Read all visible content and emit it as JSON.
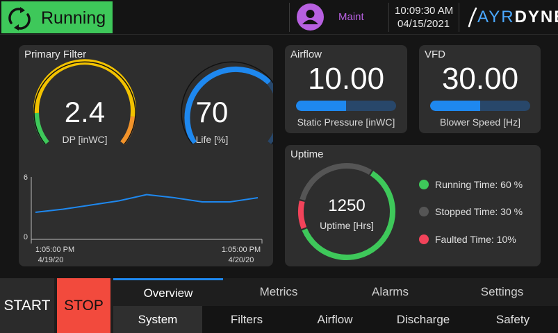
{
  "header": {
    "status": "Running",
    "status_color": "#3ec85a",
    "user": "Maint",
    "time": "10:09:30 AM",
    "date": "04/15/2021",
    "logo_part1": "AYR",
    "logo_part2": "DYNE"
  },
  "primary_filter": {
    "title": "Primary Filter",
    "dp": {
      "value": "2.4",
      "label": "DP [inWC]"
    },
    "life": {
      "value": "70",
      "label": "Life [%]"
    },
    "trend": {
      "ymin_label": "0",
      "ymax_label": "6",
      "ylim": [
        0,
        6
      ],
      "start_time": "1:05:00 PM",
      "start_date": "4/19/20",
      "end_time": "1:05:00 PM",
      "end_date": "4/20/20",
      "values": [
        2.6,
        2.9,
        3.3,
        3.7,
        4.3,
        4.0,
        3.6,
        3.6,
        4.0
      ]
    }
  },
  "airflow": {
    "title": "Airflow",
    "value": "10.00",
    "label": "Static Pressure [inWC]",
    "fill_fraction": 0.5
  },
  "vfd": {
    "title": "VFD",
    "value": "30.00",
    "label": "Blower Speed [Hz]",
    "fill_fraction": 0.5
  },
  "uptime": {
    "title": "Uptime",
    "value": "1250",
    "label": "Uptime [Hrs]",
    "legend": [
      {
        "label": "Running Time: 60 %",
        "color": "#3ec85a",
        "fraction": 0.6
      },
      {
        "label": "Stopped Time: 30 %",
        "color": "#555555",
        "fraction": 0.3
      },
      {
        "label": "Faulted Time: 10%",
        "color": "#f2435a",
        "fraction": 0.1
      }
    ]
  },
  "controls": {
    "start": "START",
    "stop": "STOP"
  },
  "tabs": [
    "Overview",
    "Metrics",
    "Alarms",
    "Settings"
  ],
  "subtabs": [
    "System",
    "Filters",
    "Airflow",
    "Discharge",
    "Safety"
  ]
}
